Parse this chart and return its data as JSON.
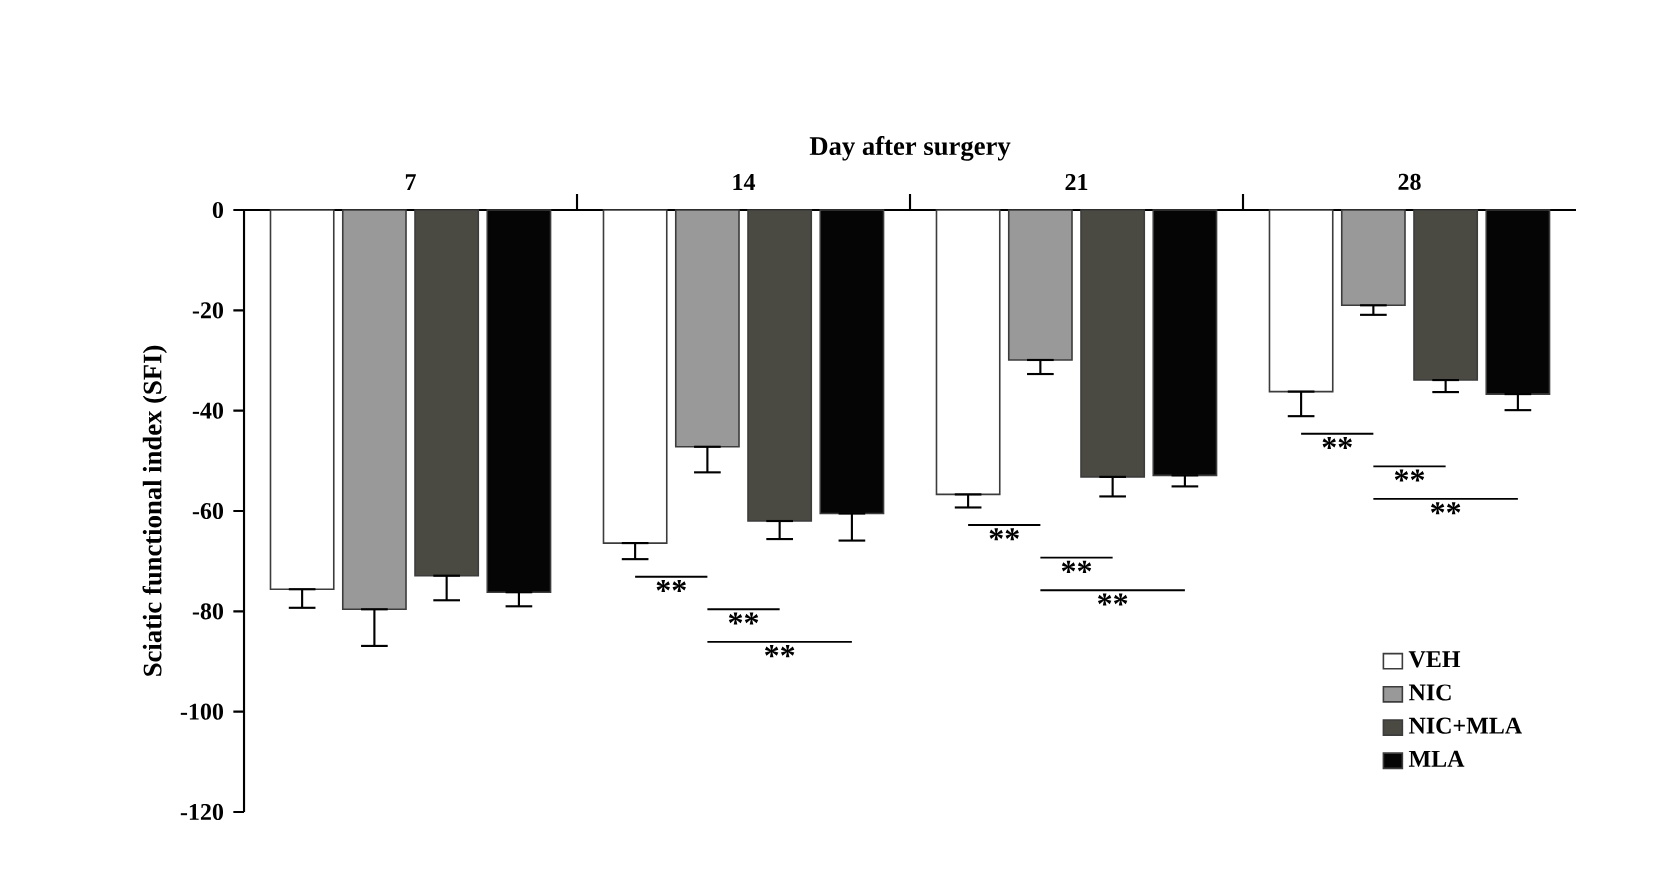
{
  "chart_data": {
    "type": "bar",
    "xlabel": "Day after surgery",
    "ylabel": "Sciatic functional index (SFI)",
    "categories": [
      "7",
      "14",
      "21",
      "28"
    ],
    "series": [
      {
        "name": "VEH",
        "color": "#ffffff",
        "values": [
          -75.6,
          -66.4,
          -56.7,
          -36.2
        ],
        "errors": [
          [
            -79.3,
            -75.6
          ],
          [
            -69.6,
            -66.4
          ],
          [
            -59.3,
            -56.7
          ],
          [
            -41.1,
            -36.2
          ]
        ]
      },
      {
        "name": "NIC",
        "color": "#999999",
        "values": [
          -79.6,
          -47.2,
          -29.9,
          -19.0
        ],
        "errors": [
          [
            -86.9,
            -79.6
          ],
          [
            -52.3,
            -47.2
          ],
          [
            -32.7,
            -29.9
          ],
          [
            -20.9,
            -19.0
          ]
        ]
      },
      {
        "name": "NIC+MLA",
        "color": "#4a4a42",
        "values": [
          -72.9,
          -62.0,
          -53.2,
          -33.9
        ],
        "errors": [
          [
            -77.8,
            -72.9
          ],
          [
            -65.6,
            -62.0
          ],
          [
            -57.1,
            -53.2
          ],
          [
            -36.3,
            -33.9
          ]
        ]
      },
      {
        "name": "MLA",
        "color": "#050505",
        "values": [
          -76.2,
          -60.5,
          -52.9,
          -36.7
        ],
        "errors": [
          [
            -79.0,
            -76.2
          ],
          [
            -65.9,
            -60.5
          ],
          [
            -55.1,
            -52.9
          ],
          [
            -39.9,
            -36.7
          ]
        ]
      }
    ],
    "ylim": [
      -120,
      0
    ],
    "yticks": [
      0,
      -20,
      -40,
      -60,
      -80,
      -100,
      -120
    ],
    "grid": false,
    "legend": "bottom right",
    "annotations": [
      "**",
      "**",
      "**",
      "**",
      "**",
      "**",
      "**",
      "**",
      "**"
    ]
  }
}
